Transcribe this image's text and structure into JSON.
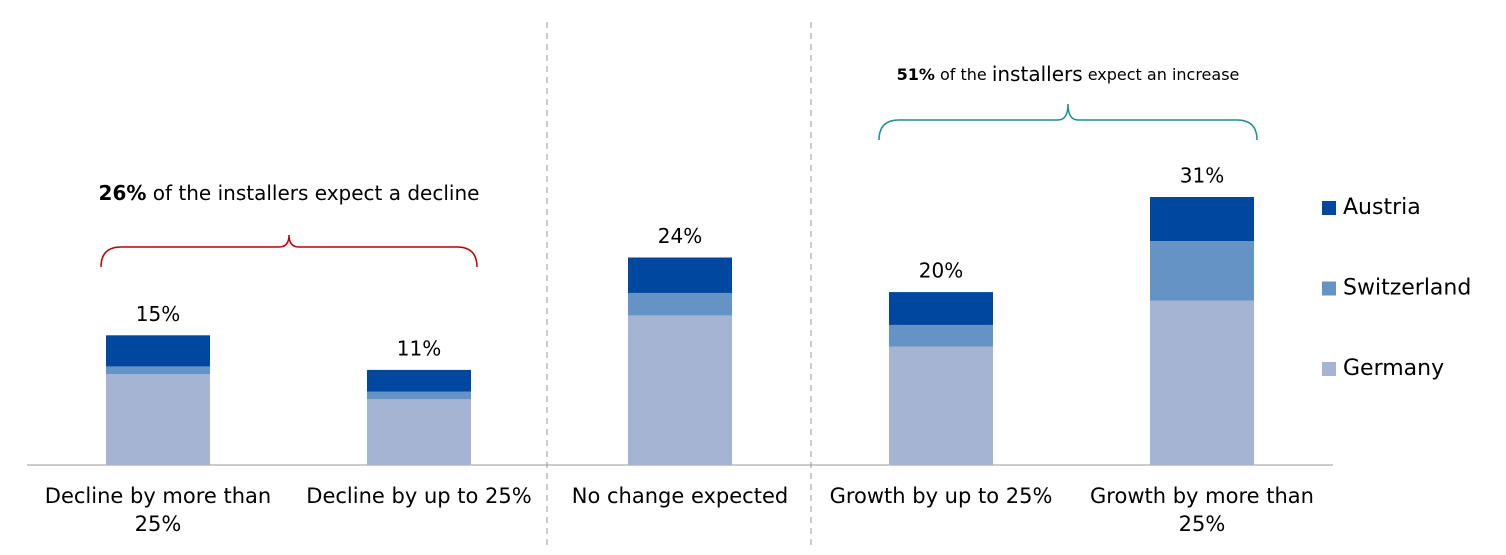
{
  "chart_data": {
    "type": "stacked-bar",
    "categories": [
      "Decline by more than 25%",
      "Decline by up to 25%",
      "No change expected",
      "Growth by up to 25%",
      "Growth by more than 25%"
    ],
    "series": [
      {
        "name": "Germany",
        "color": "#a5b4d3",
        "values": [
          10.5,
          7.6,
          17.3,
          13.7,
          19.0
        ]
      },
      {
        "name": "Switzerland",
        "color": "#6593c6",
        "values": [
          0.9,
          0.9,
          2.6,
          2.5,
          6.9
        ]
      },
      {
        "name": "Austria",
        "color": "#0047a0",
        "values": [
          3.6,
          2.5,
          4.1,
          3.8,
          5.1
        ]
      }
    ],
    "totals": [
      15,
      11,
      24,
      20,
      31
    ],
    "total_labels": [
      "15%",
      "11%",
      "24%",
      "20%",
      "31%"
    ],
    "ylim": [
      0,
      35
    ],
    "annotations": [
      {
        "parts": [
          "26%",
          " of the installers expect a decline"
        ]
      },
      {
        "parts": [
          "51%",
          " of the ",
          "installers",
          " expect an increase"
        ]
      }
    ]
  }
}
